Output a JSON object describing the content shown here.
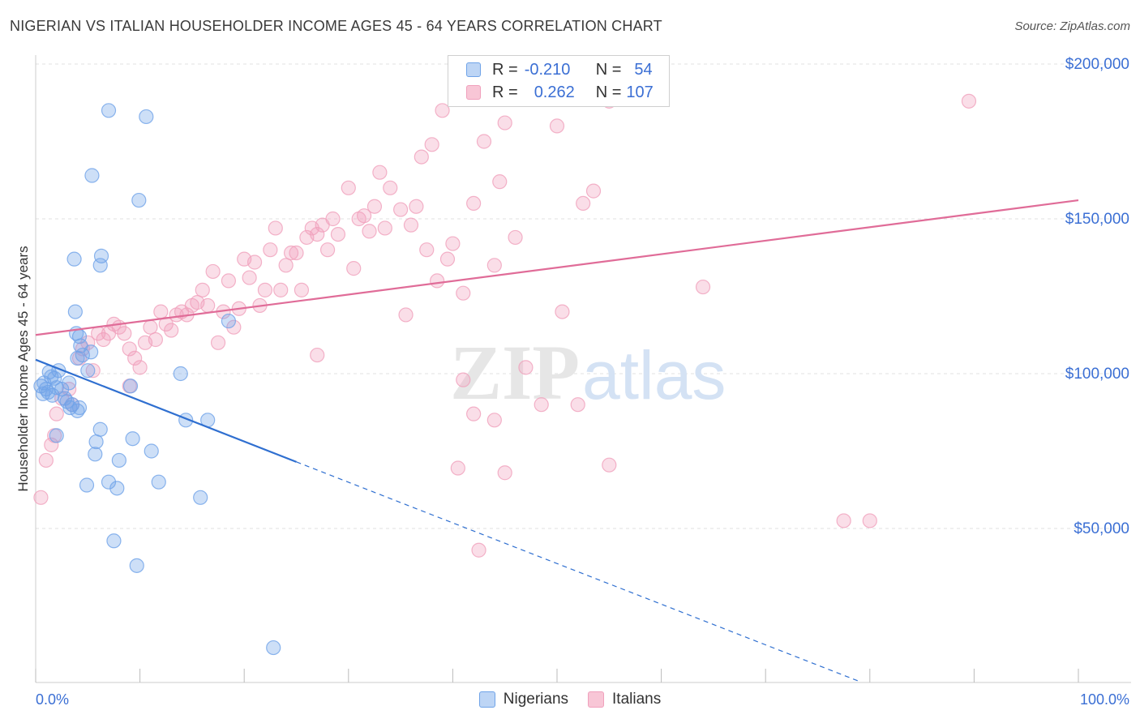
{
  "title": "NIGERIAN VS ITALIAN HOUSEHOLDER INCOME AGES 45 - 64 YEARS CORRELATION CHART",
  "source": "Source: ZipAtlas.com",
  "watermark": {
    "zip": "ZIP",
    "atlas": "atlas"
  },
  "legend_stats": [
    {
      "r_label": "R =",
      "r_value": "-0.210",
      "n_label": "N =",
      "n_value": "54"
    },
    {
      "r_label": "R =",
      "r_value": "0.262",
      "n_label": "N =",
      "n_value": "107"
    }
  ],
  "colors": {
    "nigerians": "#6fa3e8",
    "nigerians_line": "#2f6fd0",
    "italians": "#f0a0bc",
    "italians_line": "#e06c98",
    "axis_text": "#3b6fd4",
    "grid": "#e2e2e2"
  },
  "chart_data": {
    "type": "scatter",
    "title": "NIGERIAN VS ITALIAN HOUSEHOLDER INCOME AGES 45 - 64 YEARS CORRELATION CHART",
    "xlabel": "",
    "ylabel": "Householder Income Ages 45 - 64 years",
    "xlim": [
      0,
      100
    ],
    "ylim": [
      0,
      210000
    ],
    "x_tick_labels": [
      "0.0%",
      "100.0%"
    ],
    "y_ticks": [
      50000,
      100000,
      150000,
      200000
    ],
    "y_tick_labels": [
      "$50,000",
      "$100,000",
      "$150,000",
      "$200,000"
    ],
    "legend_position": "bottom-center",
    "series": [
      {
        "name": "Nigerians",
        "r": -0.21,
        "n": 54,
        "trend": {
          "x_start": 0,
          "y_start": 104500,
          "x_solid_end": 25,
          "y_solid_end": 71500,
          "x_dash_end": 79,
          "y_dash_end": 600
        },
        "points": [
          [
            0.5,
            96000
          ],
          [
            0.8,
            97000
          ],
          [
            1.0,
            95000
          ],
          [
            1.2,
            94000
          ],
          [
            0.7,
            93500
          ],
          [
            1.5,
            99000
          ],
          [
            1.8,
            98500
          ],
          [
            2.2,
            101000
          ],
          [
            1.3,
            100500
          ],
          [
            2.5,
            95000
          ],
          [
            2.8,
            92000
          ],
          [
            3.0,
            91000
          ],
          [
            3.3,
            89000
          ],
          [
            4.0,
            88000
          ],
          [
            4.2,
            89000
          ],
          [
            4.0,
            105000
          ],
          [
            4.3,
            109000
          ],
          [
            5.0,
            101000
          ],
          [
            4.5,
            106000
          ],
          [
            5.3,
            107000
          ],
          [
            4.2,
            112000
          ],
          [
            3.9,
            113000
          ],
          [
            3.8,
            120000
          ],
          [
            3.7,
            137000
          ],
          [
            6.3,
            138000
          ],
          [
            6.2,
            135000
          ],
          [
            7.0,
            185000
          ],
          [
            10.6,
            183000
          ],
          [
            5.4,
            164000
          ],
          [
            9.9,
            156000
          ],
          [
            2.0,
            80000
          ],
          [
            6.2,
            82000
          ],
          [
            5.8,
            78000
          ],
          [
            9.3,
            79000
          ],
          [
            11.1,
            75000
          ],
          [
            5.7,
            74000
          ],
          [
            8.0,
            72000
          ],
          [
            7.0,
            65000
          ],
          [
            4.9,
            64000
          ],
          [
            7.8,
            63000
          ],
          [
            11.8,
            65000
          ],
          [
            15.8,
            60000
          ],
          [
            7.5,
            46000
          ],
          [
            9.7,
            38000
          ],
          [
            22.8,
            11500
          ],
          [
            13.9,
            100000
          ],
          [
            14.4,
            85000
          ],
          [
            16.5,
            85000
          ],
          [
            9.1,
            96000
          ],
          [
            18.5,
            117000
          ],
          [
            1.6,
            93000
          ],
          [
            3.5,
            90000
          ],
          [
            2.0,
            95500
          ],
          [
            3.2,
            97000
          ]
        ]
      },
      {
        "name": "Italians",
        "r": 0.262,
        "n": 107,
        "trend": {
          "x_start": 0,
          "y_start": 112500,
          "x_end": 100,
          "y_end": 156000
        },
        "points": [
          [
            0.5,
            60000
          ],
          [
            1.0,
            72000
          ],
          [
            1.5,
            77000
          ],
          [
            1.8,
            80000
          ],
          [
            2.0,
            87000
          ],
          [
            2.5,
            92000
          ],
          [
            3.2,
            95000
          ],
          [
            3.5,
            90000
          ],
          [
            4.2,
            105000
          ],
          [
            4.5,
            108000
          ],
          [
            5.0,
            110000
          ],
          [
            5.5,
            101000
          ],
          [
            6.0,
            113000
          ],
          [
            6.5,
            111000
          ],
          [
            7.0,
            113000
          ],
          [
            7.5,
            116000
          ],
          [
            8.0,
            115000
          ],
          [
            8.5,
            113000
          ],
          [
            9.0,
            108000
          ],
          [
            9.5,
            105000
          ],
          [
            10.0,
            102000
          ],
          [
            10.5,
            110000
          ],
          [
            11.0,
            115000
          ],
          [
            11.5,
            111000
          ],
          [
            12.0,
            120000
          ],
          [
            12.5,
            116000
          ],
          [
            13.0,
            114000
          ],
          [
            13.5,
            119000
          ],
          [
            14.0,
            120000
          ],
          [
            14.5,
            119000
          ],
          [
            15.0,
            122000
          ],
          [
            15.5,
            123000
          ],
          [
            16.0,
            127000
          ],
          [
            16.5,
            122000
          ],
          [
            17.0,
            133000
          ],
          [
            17.5,
            110000
          ],
          [
            18.0,
            120000
          ],
          [
            18.5,
            130000
          ],
          [
            19.0,
            115000
          ],
          [
            19.5,
            121000
          ],
          [
            20.0,
            137000
          ],
          [
            20.5,
            131000
          ],
          [
            21.0,
            136000
          ],
          [
            21.5,
            122000
          ],
          [
            22.0,
            127000
          ],
          [
            22.5,
            140000
          ],
          [
            23.0,
            147000
          ],
          [
            23.5,
            127000
          ],
          [
            24.0,
            135000
          ],
          [
            24.5,
            139000
          ],
          [
            25.0,
            139000
          ],
          [
            25.5,
            127000
          ],
          [
            26.0,
            144000
          ],
          [
            26.5,
            147000
          ],
          [
            27.0,
            145000
          ],
          [
            27.5,
            148000
          ],
          [
            28.0,
            140000
          ],
          [
            28.5,
            150000
          ],
          [
            29.0,
            145000
          ],
          [
            30.0,
            160000
          ],
          [
            30.5,
            134000
          ],
          [
            31.0,
            150000
          ],
          [
            31.5,
            151000
          ],
          [
            32.0,
            146000
          ],
          [
            32.5,
            154000
          ],
          [
            33.0,
            165000
          ],
          [
            33.5,
            147000
          ],
          [
            34.0,
            160000
          ],
          [
            35.0,
            153000
          ],
          [
            35.5,
            119000
          ],
          [
            36.0,
            148000
          ],
          [
            36.5,
            154000
          ],
          [
            37.0,
            170000
          ],
          [
            37.5,
            140000
          ],
          [
            38.0,
            174000
          ],
          [
            38.5,
            130000
          ],
          [
            39.0,
            185000
          ],
          [
            39.5,
            137000
          ],
          [
            40.0,
            142000
          ],
          [
            41.0,
            126000
          ],
          [
            42.0,
            155000
          ],
          [
            43.0,
            175000
          ],
          [
            44.0,
            135000
          ],
          [
            44.5,
            162000
          ],
          [
            45.0,
            181000
          ],
          [
            46.0,
            144000
          ],
          [
            47.0,
            102000
          ],
          [
            48.5,
            90000
          ],
          [
            50.0,
            180000
          ],
          [
            50.5,
            120000
          ],
          [
            52.0,
            90000
          ],
          [
            52.5,
            155000
          ],
          [
            53.5,
            159000
          ],
          [
            55.0,
            188000
          ],
          [
            64.0,
            128000
          ],
          [
            77.5,
            52500
          ],
          [
            80.0,
            52500
          ],
          [
            89.5,
            188000
          ],
          [
            42.0,
            87000
          ],
          [
            44.0,
            85000
          ],
          [
            42.5,
            43000
          ],
          [
            45.0,
            68000
          ],
          [
            55.0,
            70500
          ],
          [
            40.5,
            69500
          ],
          [
            41.0,
            98000
          ],
          [
            27.0,
            106000
          ],
          [
            9.0,
            96000
          ]
        ]
      }
    ]
  }
}
